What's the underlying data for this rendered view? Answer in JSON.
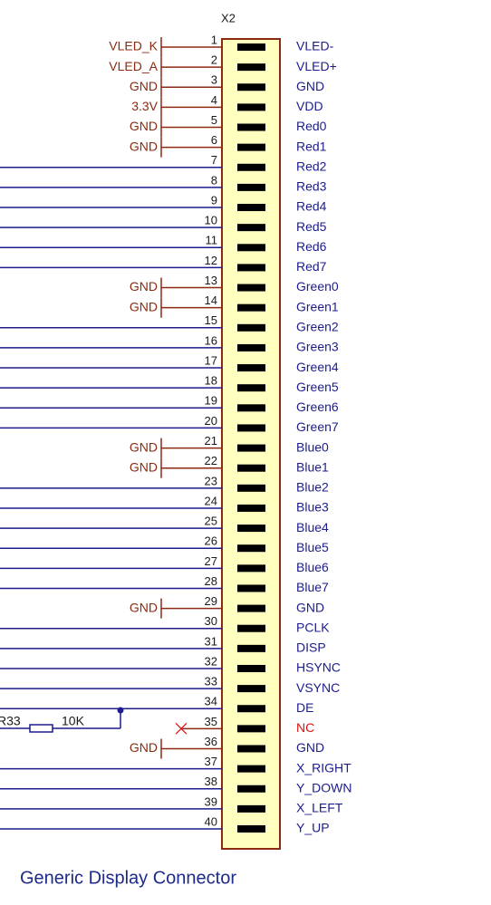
{
  "component": {
    "designator": "X2",
    "pins": [
      {
        "number": "1",
        "name": "VLED-",
        "net": "VLED_K"
      },
      {
        "number": "2",
        "name": "VLED+",
        "net": "VLED_A"
      },
      {
        "number": "3",
        "name": "GND",
        "net": "GND"
      },
      {
        "number": "4",
        "name": "VDD",
        "net": "3.3V"
      },
      {
        "number": "5",
        "name": "Red0",
        "net": "GND"
      },
      {
        "number": "6",
        "name": "Red1",
        "net": "GND"
      },
      {
        "number": "7",
        "name": "Red2"
      },
      {
        "number": "8",
        "name": "Red3"
      },
      {
        "number": "9",
        "name": "Red4"
      },
      {
        "number": "10",
        "name": "Red5"
      },
      {
        "number": "11",
        "name": "Red6"
      },
      {
        "number": "12",
        "name": "Red7"
      },
      {
        "number": "13",
        "name": "Green0",
        "net": "GND"
      },
      {
        "number": "14",
        "name": "Green1",
        "net": "GND"
      },
      {
        "number": "15",
        "name": "Green2"
      },
      {
        "number": "16",
        "name": "Green3"
      },
      {
        "number": "17",
        "name": "Green4"
      },
      {
        "number": "18",
        "name": "Green5"
      },
      {
        "number": "19",
        "name": "Green6"
      },
      {
        "number": "20",
        "name": "Green7"
      },
      {
        "number": "21",
        "name": "Blue0",
        "net": "GND"
      },
      {
        "number": "22",
        "name": "Blue1",
        "net": "GND"
      },
      {
        "number": "23",
        "name": "Blue2"
      },
      {
        "number": "24",
        "name": "Blue3"
      },
      {
        "number": "25",
        "name": "Blue4"
      },
      {
        "number": "26",
        "name": "Blue5"
      },
      {
        "number": "27",
        "name": "Blue6"
      },
      {
        "number": "28",
        "name": "Blue7"
      },
      {
        "number": "29",
        "name": "GND",
        "net": "GND"
      },
      {
        "number": "30",
        "name": "PCLK"
      },
      {
        "number": "31",
        "name": "DISP"
      },
      {
        "number": "32",
        "name": "HSYNC"
      },
      {
        "number": "33",
        "name": "VSYNC"
      },
      {
        "number": "34",
        "name": "DE"
      },
      {
        "number": "35",
        "name": "NC"
      },
      {
        "number": "36",
        "name": "GND",
        "net": "GND"
      },
      {
        "number": "37",
        "name": "X_RIGHT"
      },
      {
        "number": "38",
        "name": "Y_DOWN"
      },
      {
        "number": "39",
        "name": "X_LEFT"
      },
      {
        "number": "40",
        "name": "Y_UP"
      }
    ]
  },
  "resistor": {
    "designator": "R33",
    "value": "10K"
  },
  "title": "Generic Display Connector"
}
